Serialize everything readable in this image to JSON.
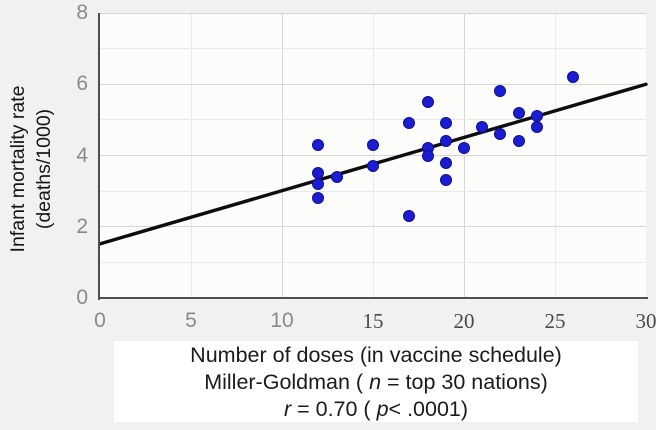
{
  "chart_data": {
    "type": "scatter",
    "title": "",
    "xlabel": "Number of doses (in vaccine schedule)",
    "ylabel": "Infant mortality rate (deaths/1000)",
    "xlim": [
      0,
      30
    ],
    "ylim": [
      0,
      8
    ],
    "x_ticks": [
      {
        "value": 0,
        "label": "0"
      },
      {
        "value": 5,
        "label": "5"
      },
      {
        "value": 10,
        "label": "10"
      },
      {
        "value": 15,
        "label": "15"
      },
      {
        "value": 20,
        "label": "20"
      },
      {
        "value": 25,
        "label": "25"
      },
      {
        "value": 30,
        "label": "30"
      }
    ],
    "y_ticks": [
      {
        "value": 0,
        "label": "0"
      },
      {
        "value": 2,
        "label": "2"
      },
      {
        "value": 4,
        "label": "4"
      },
      {
        "value": 6,
        "label": "6"
      },
      {
        "value": 8,
        "label": "8"
      }
    ],
    "x_gridlines": [
      5,
      10,
      15,
      20,
      25
    ],
    "y_gridlines": [
      1,
      2,
      3,
      4,
      5,
      6,
      7,
      8
    ],
    "grid": true,
    "legend": false,
    "points": [
      [
        12,
        4.3
      ],
      [
        12,
        3.5
      ],
      [
        12,
        3.2
      ],
      [
        12,
        2.8
      ],
      [
        13,
        3.4
      ],
      [
        15,
        4.3
      ],
      [
        15,
        3.7
      ],
      [
        17,
        4.9
      ],
      [
        17,
        2.3
      ],
      [
        18,
        5.5
      ],
      [
        18,
        4.2
      ],
      [
        18,
        4.0
      ],
      [
        19,
        4.9
      ],
      [
        19,
        4.4
      ],
      [
        19,
        3.8
      ],
      [
        19,
        3.3
      ],
      [
        20,
        4.2
      ],
      [
        21,
        4.8
      ],
      [
        22,
        5.8
      ],
      [
        22,
        4.6
      ],
      [
        23,
        5.2
      ],
      [
        23,
        4.4
      ],
      [
        24,
        5.1
      ],
      [
        24,
        4.8
      ],
      [
        26,
        6.2
      ]
    ],
    "trend_line": {
      "from": [
        0,
        1.52
      ],
      "to": [
        30,
        6.0
      ]
    },
    "stats": {
      "source": "Miller-Goldman",
      "n": "top 30 nations",
      "r": "0.70",
      "p": "< .0001"
    }
  },
  "y_axis_title": {
    "line1": "Infant mortality rate",
    "line2": "(deaths/1000)"
  },
  "caption": {
    "lines": [
      {
        "segments": [
          {
            "text": "Number of doses (in vaccine schedule)",
            "italic": false
          }
        ]
      },
      {
        "segments": [
          {
            "text": "Miller-Goldman ( ",
            "italic": false
          },
          {
            "text": "n",
            "italic": true
          },
          {
            "text": " = top 30 nations)",
            "italic": false
          }
        ]
      },
      {
        "segments": [
          {
            "text": "r",
            "italic": true
          },
          {
            "text": " = 0.70 ( ",
            "italic": false
          },
          {
            "text": "p",
            "italic": true
          },
          {
            "text": "< .0001)",
            "italic": false
          }
        ]
      }
    ]
  },
  "colors": {
    "dot_fill": "#1c1cd3",
    "dot_border": "#10108e",
    "trend": "#0d0d0d",
    "axis": "#4f4f4f",
    "grid_major": "#d6d6d4",
    "grid_minor": "#e9e9e7",
    "tick_label": "#8a8a8a",
    "background": "#f1f1ef",
    "plot_background": "#fcfcfb"
  }
}
